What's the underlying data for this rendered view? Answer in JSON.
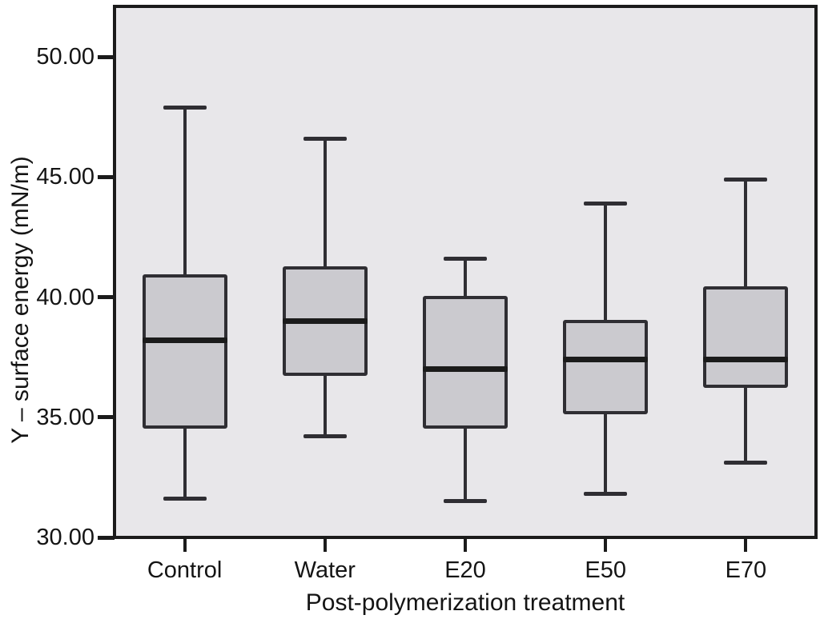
{
  "chart_data": {
    "type": "boxplot",
    "title": "",
    "xlabel": "Post-polymerization treatment",
    "ylabel": "Y – surface energy (mN/m)",
    "categories": [
      "Control",
      "Water",
      "E20",
      "E50",
      "E70"
    ],
    "ylim": [
      30,
      52.1
    ],
    "grid": false,
    "legend": "none",
    "y_ticks": [
      {
        "value": 50,
        "label": "50.00"
      },
      {
        "value": 45,
        "label": "45.00"
      },
      {
        "value": 40,
        "label": "40.00"
      },
      {
        "value": 35,
        "label": "35.00"
      },
      {
        "value": 30,
        "label": "30.00"
      }
    ],
    "series": [
      {
        "name": "Control",
        "min": 31.6,
        "q1": 34.6,
        "median": 38.2,
        "q3": 40.9,
        "max": 47.9
      },
      {
        "name": "Water",
        "min": 34.2,
        "q1": 36.8,
        "median": 39.0,
        "q3": 41.2,
        "max": 46.6
      },
      {
        "name": "E20",
        "min": 31.5,
        "q1": 34.6,
        "median": 37.0,
        "q3": 40.0,
        "max": 41.6
      },
      {
        "name": "E50",
        "min": 31.8,
        "q1": 35.2,
        "median": 37.4,
        "q3": 39.0,
        "max": 43.9
      },
      {
        "name": "E70",
        "min": 33.1,
        "q1": 36.3,
        "median": 37.4,
        "q3": 40.4,
        "max": 44.9
      }
    ],
    "colors": {
      "plot_bg": "#e8e7ea",
      "box_fill": "#cbcacf",
      "box_border": "#2f2e33",
      "median": "#1b1b1b",
      "whisker": "#2f2e33",
      "frame": "#1b1b1b",
      "text": "#141414"
    }
  }
}
